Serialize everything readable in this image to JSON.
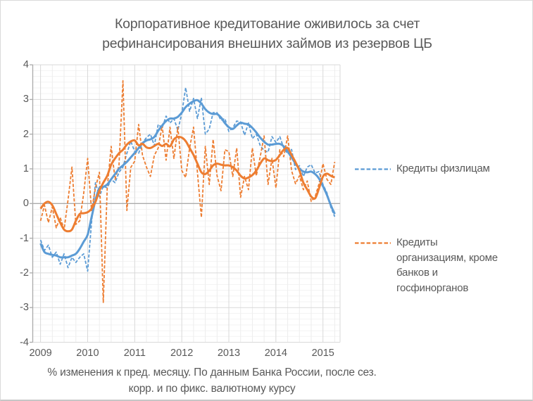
{
  "chart": {
    "title_line1": "Корпоративное кредитование оживилось за счет",
    "title_line2": "рефинансирования внешних займов из резервов ЦБ",
    "caption_line1": "% изменения к пред. месяцу. По данным Банка России, после сез.",
    "caption_line2": "корр. и по фикс. валютному курсу",
    "colors": {
      "individuals": "#5B9BD5",
      "organizations": "#ED7D31",
      "grid_major": "#D9D9D9",
      "grid_minor_h": "#F3F3F3",
      "grid_minor_v": "#EDEDED",
      "axis": "#ABABAB",
      "text": "#595959"
    },
    "legend": [
      {
        "id": "individuals",
        "lines": [
          "Кредиты физлицам"
        ]
      },
      {
        "id": "organizations",
        "lines": [
          "Кредиты",
          "организациям, кроме",
          "банков и",
          "госфинорганов"
        ]
      }
    ]
  },
  "chart_data": {
    "type": "line",
    "title": "Корпоративное кредитование оживилось за счет рефинансирования внешних займов из резервов ЦБ",
    "x_unit": "month",
    "x_range": [
      "2009-01",
      "2015-04"
    ],
    "x_tick_labels": [
      "2009",
      "2010",
      "2011",
      "2012",
      "2013",
      "2014",
      "2015"
    ],
    "x_minor_grid": "quarterly",
    "ylim": [
      -4,
      4
    ],
    "y_tick_labels": [
      "4",
      "3",
      "2",
      "1",
      "0",
      "-1",
      "-2",
      "-3",
      "-4"
    ],
    "grid": {
      "major": true,
      "minor": true
    },
    "legend_position": "right",
    "series": [
      {
        "id": "individuals_monthly",
        "legend": "Кредиты физлицам",
        "style": "dashed",
        "line_shape": "straight",
        "color": "#5B9BD5",
        "values": [
          -1.05,
          -1.35,
          -1.2,
          -1.55,
          -1.4,
          -1.75,
          -1.45,
          -1.85,
          -1.55,
          -1.7,
          -1.55,
          -1.45,
          -1.95,
          -0.55,
          0.6,
          0.2,
          0.5,
          0.45,
          0.7,
          0.6,
          0.9,
          1.05,
          1.45,
          1.8,
          1.5,
          1.45,
          1.75,
          1.9,
          2.0,
          1.67,
          2.28,
          2.18,
          2.52,
          2.32,
          2.45,
          2.11,
          2.6,
          3.34,
          2.66,
          3.03,
          2.45,
          3.05,
          2.0,
          2.15,
          2.62,
          2.62,
          2.4,
          2.45,
          2.08,
          2.18,
          2.38,
          2.35,
          1.97,
          2.32,
          1.87,
          2.0,
          1.67,
          1.53,
          1.48,
          1.93,
          1.76,
          1.93,
          1.6,
          1.43,
          1.56,
          0.98,
          1.09,
          0.78,
          1.05,
          1.12,
          0.88,
          0.92,
          0.55,
          0.31,
          -0.11,
          -0.38
        ]
      },
      {
        "id": "organizations_monthly",
        "legend": "Кредиты организациям, кроме банков и госфинорганов",
        "style": "dashed",
        "line_shape": "straight",
        "color": "#ED7D31",
        "values": [
          -0.5,
          -0.05,
          -0.55,
          -0.1,
          -0.7,
          -0.4,
          -0.75,
          0.1,
          1.05,
          -0.6,
          -0.5,
          0.3,
          1.3,
          -0.2,
          0.45,
          0.9,
          -2.85,
          0.45,
          1.65,
          0.7,
          1.1,
          3.54,
          -0.2,
          1.04,
          1.22,
          2.28,
          1.39,
          1.05,
          0.78,
          1.39,
          1.6,
          2.25,
          1.25,
          2.2,
          1.3,
          2.2,
          0.95,
          0.75,
          1.6,
          2.2,
          0.9,
          -0.4,
          1.65,
          0.55,
          1.85,
          0.8,
          0.37,
          1.55,
          1.5,
          0.78,
          1.6,
          0.18,
          0.78,
          0.4,
          1.6,
          0.8,
          1.35,
          1.95,
          0.55,
          1.3,
          0.45,
          1.55,
          1.35,
          1.95,
          0.95,
          0.57,
          0.8,
          0.4,
          0.65,
          0.06,
          0.2,
          0.57,
          1.15,
          0.7,
          0.55,
          1.2
        ]
      },
      {
        "id": "individuals_trend",
        "legend": null,
        "style": "solid",
        "line_shape": "smooth",
        "color": "#5B9BD5",
        "values": [
          -1.15,
          -1.4,
          -1.45,
          -1.48,
          -1.5,
          -1.55,
          -1.55,
          -1.55,
          -1.5,
          -1.45,
          -1.3,
          -1.1,
          -0.9,
          -0.4,
          0.1,
          0.45,
          0.48,
          0.55,
          0.7,
          0.85,
          1.0,
          1.1,
          1.2,
          1.33,
          1.46,
          1.6,
          1.74,
          1.82,
          1.85,
          1.92,
          2.1,
          2.25,
          2.38,
          2.45,
          2.45,
          2.5,
          2.62,
          2.78,
          2.88,
          2.95,
          2.98,
          2.88,
          2.72,
          2.62,
          2.58,
          2.58,
          2.48,
          2.32,
          2.2,
          2.15,
          2.25,
          2.33,
          2.3,
          2.28,
          2.18,
          2.05,
          1.9,
          1.78,
          1.7,
          1.7,
          1.72,
          1.72,
          1.65,
          1.5,
          1.33,
          1.15,
          1.0,
          0.92,
          0.9,
          0.92,
          0.85,
          0.72,
          0.5,
          0.25,
          -0.05,
          -0.3
        ]
      },
      {
        "id": "organizations_trend",
        "legend": null,
        "style": "solid",
        "line_shape": "smooth",
        "color": "#ED7D31",
        "values": [
          -0.15,
          0.0,
          0.05,
          -0.05,
          -0.3,
          -0.55,
          -0.75,
          -0.8,
          -0.75,
          -0.5,
          -0.3,
          -0.28,
          -0.25,
          -0.15,
          0.05,
          0.37,
          0.6,
          0.8,
          1.12,
          1.3,
          1.45,
          1.55,
          1.7,
          1.79,
          1.82,
          1.68,
          1.72,
          1.62,
          1.6,
          1.66,
          1.72,
          1.66,
          1.72,
          1.65,
          1.85,
          1.92,
          1.9,
          1.8,
          1.6,
          1.4,
          1.15,
          0.9,
          0.85,
          0.95,
          1.1,
          1.15,
          1.12,
          1.1,
          1.1,
          1.05,
          0.95,
          0.8,
          0.72,
          0.75,
          0.82,
          0.95,
          1.15,
          1.3,
          1.25,
          1.22,
          1.26,
          1.4,
          1.55,
          1.6,
          1.4,
          1.19,
          0.95,
          0.6,
          0.4,
          0.2,
          0.15,
          0.44,
          0.78,
          0.86,
          0.8,
          0.75
        ]
      }
    ]
  }
}
